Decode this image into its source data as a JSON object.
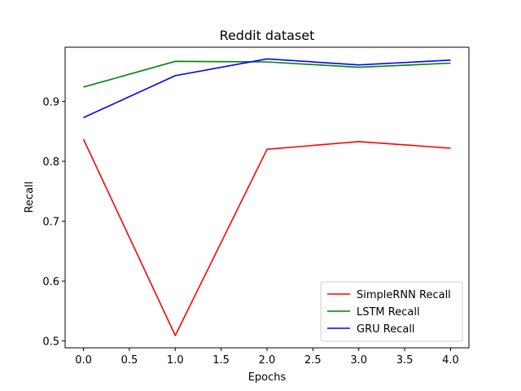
{
  "chart_data": {
    "type": "line",
    "title": "Reddit dataset",
    "xlabel": "Epochs",
    "ylabel": "Recall",
    "x": [
      0,
      1,
      2,
      3,
      4
    ],
    "xlim": [
      -0.2,
      4.2
    ],
    "ylim": [
      0.4885,
      0.9905
    ],
    "xticks": [
      0.0,
      0.5,
      1.0,
      1.5,
      2.0,
      2.5,
      3.0,
      3.5,
      4.0
    ],
    "xtick_labels": [
      "0.0",
      "0.5",
      "1.0",
      "1.5",
      "2.0",
      "2.5",
      "3.0",
      "3.5",
      "4.0"
    ],
    "yticks": [
      0.5,
      0.6,
      0.7,
      0.8,
      0.9
    ],
    "ytick_labels": [
      "0.5",
      "0.6",
      "0.7",
      "0.8",
      "0.9"
    ],
    "grid": false,
    "legend_position": "lower-right",
    "series": [
      {
        "name": "SimpleRNN Recall",
        "color": "#ff0000",
        "values": [
          0.837,
          0.509,
          0.82,
          0.833,
          0.822
        ]
      },
      {
        "name": "LSTM Recall",
        "color": "#008000",
        "values": [
          0.924,
          0.967,
          0.966,
          0.957,
          0.964
        ]
      },
      {
        "name": "GRU Recall",
        "color": "#0000ff",
        "values": [
          0.873,
          0.943,
          0.971,
          0.961,
          0.969
        ]
      }
    ]
  }
}
